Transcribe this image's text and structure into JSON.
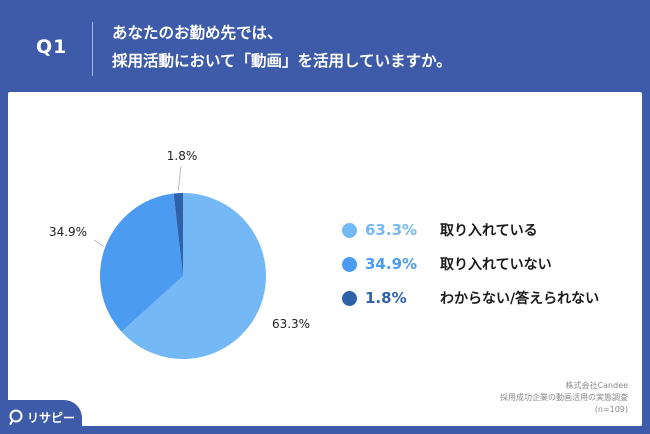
{
  "header": {
    "q_label": "Q1",
    "question_line1": "あなたのお勤め先では、",
    "question_line2": "採用活動において「動画」を活用していますか。"
  },
  "colors": {
    "background": "#3d5ba8",
    "slice_light": "#74b9f5",
    "slice_mid": "#4b9bf0",
    "slice_dark": "#2f62a8"
  },
  "chart_data": {
    "type": "pie",
    "title": "",
    "start": "12 o'clock",
    "direction": "clockwise",
    "slices": [
      {
        "label": "取り入れている",
        "value": 63.3,
        "display": "63.3%",
        "color": "#74b9f5"
      },
      {
        "label": "取り入れていない",
        "value": 34.9,
        "display": "34.9%",
        "color": "#4b9bf0"
      },
      {
        "label": "わからない/答えられない",
        "value": 1.8,
        "display": "1.8%",
        "color": "#2f62a8"
      }
    ],
    "legend_position": "right"
  },
  "source": {
    "line1": "株式会社Candee",
    "line2": "採用成功企業の動画活用の実態調査",
    "line3": "(n=109)"
  },
  "logo": {
    "icon": "resapi-logo-icon",
    "text": "リサピー"
  }
}
